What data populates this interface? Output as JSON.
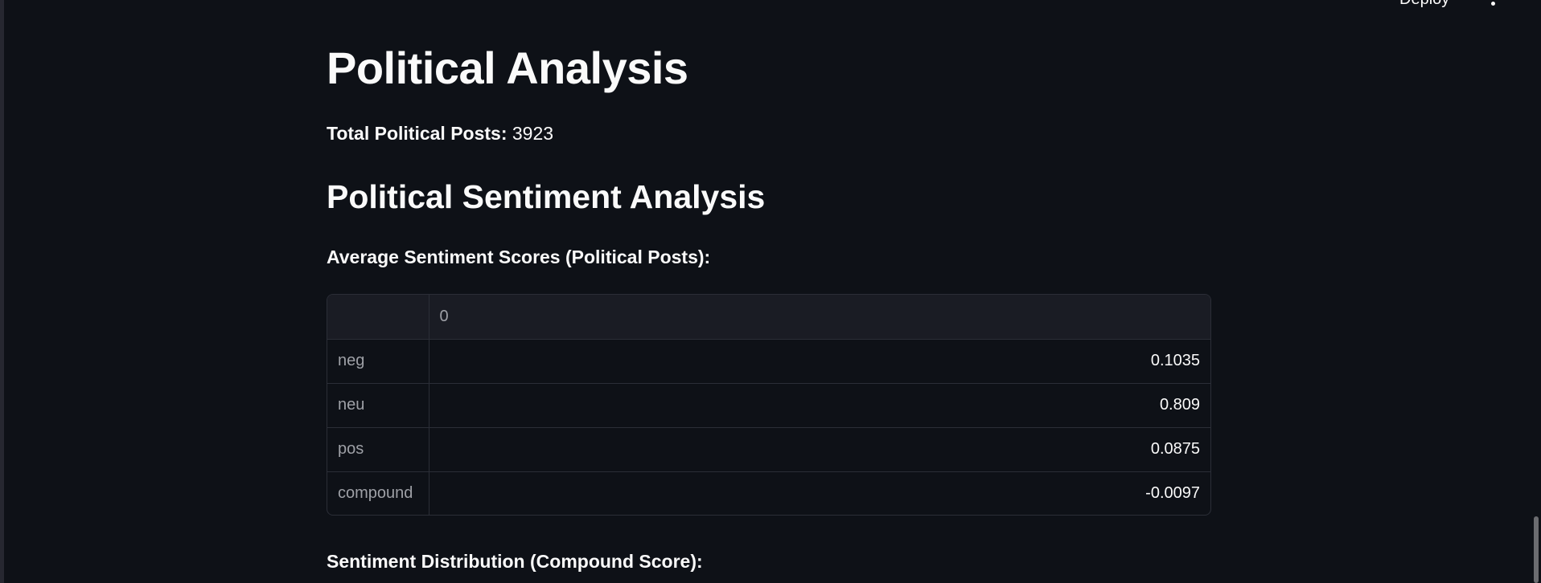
{
  "header": {
    "deploy_label": "Deploy"
  },
  "main": {
    "title": "Political Analysis",
    "total_label": "Total Political Posts:",
    "total_value": "3923",
    "sentiment_heading": "Political Sentiment Analysis",
    "avg_label": "Average Sentiment Scores (Political Posts):",
    "dist_label": "Sentiment Distribution (Compound Score):"
  },
  "table": {
    "column_header": "0",
    "rows": [
      {
        "label": "neg",
        "value": "0.1035"
      },
      {
        "label": "neu",
        "value": "0.809"
      },
      {
        "label": "pos",
        "value": "0.0875"
      },
      {
        "label": "compound",
        "value": "-0.0097"
      }
    ]
  },
  "icons": {
    "menu": "kebab-menu-icon"
  },
  "colors": {
    "background": "#0e1117",
    "text": "#fafafa",
    "muted_text": "#9ea0a6",
    "table_border": "#2b2e37",
    "table_header_bg": "#1a1c24"
  }
}
